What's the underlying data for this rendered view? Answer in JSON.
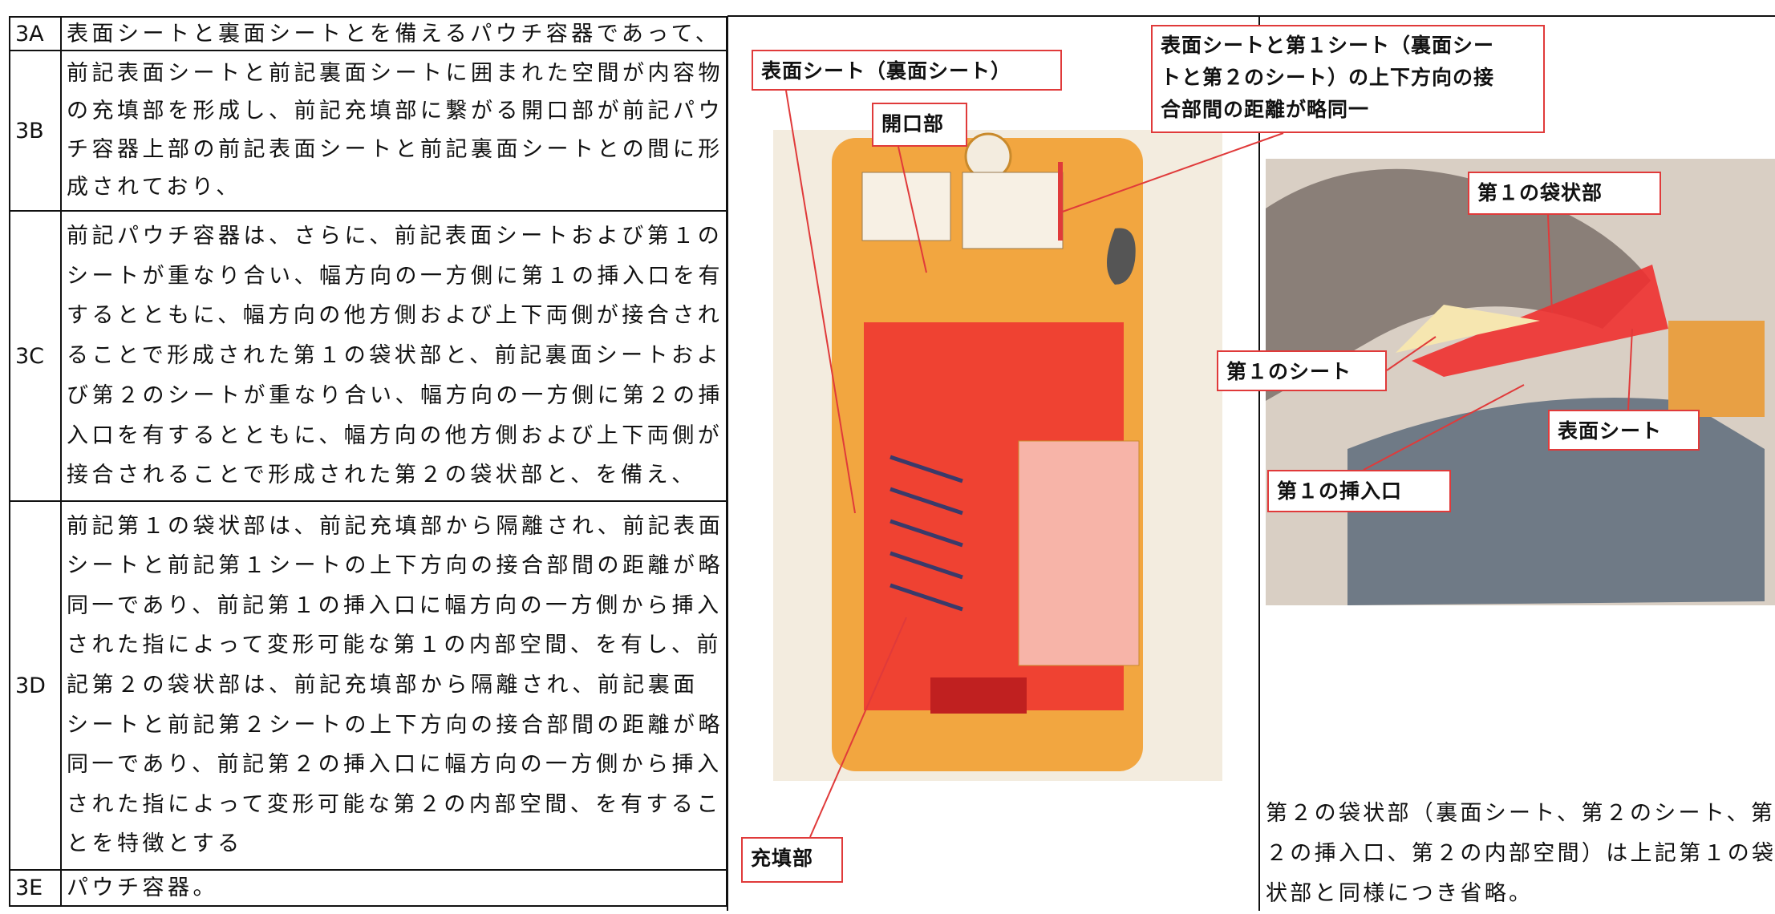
{
  "table": {
    "rows": [
      {
        "id": "3A",
        "lines": [
          "表面シートと裏面シートとを備えるパウチ容器であって、"
        ]
      },
      {
        "id": "3B",
        "lines": [
          "前記表面シートと前記裏面シートに囲まれた空間が内容物",
          "の充填部を形成し、前記充填部に繋がる開口部が前記パウ",
          "チ容器上部の前記表面シートと前記裏面シートとの間に形",
          "成されており、"
        ]
      },
      {
        "id": "3C",
        "lines": [
          "前記パウチ容器は、さらに、前記表面シートおよび第１の",
          "シートが重なり合い、幅方向の一方側に第１の挿入口を有",
          "するとともに、幅方向の他方側および上下両側が接合され",
          "ることで形成された第１の袋状部と、前記裏面シートおよ",
          "び第２のシートが重なり合い、幅方向の一方側に第２の挿",
          "入口を有するとともに、幅方向の他方側および上下両側が",
          "接合されることで形成された第２の袋状部と、を備え、"
        ]
      },
      {
        "id": "3D",
        "lines": [
          "前記第１の袋状部は、前記充填部から隔離され、前記表面",
          "シートと前記第１シートの上下方向の接合部間の距離が略",
          "同一であり、前記第１の挿入口に幅方向の一方側から挿入",
          "された指によって変形可能な第１の内部空間、を有し、前",
          "記第２の袋状部は、前記充填部から隔離され、前記裏面",
          "シートと前記第２シートの上下方向の接合部間の距離が略",
          "同一であり、前記第２の挿入口に幅方向の一方側から挿入",
          "された指によって変形可能な第２の内部空間、を有するこ",
          "とを特徴とする"
        ]
      },
      {
        "id": "3E",
        "lines": [
          "パウチ容器。"
        ]
      }
    ]
  },
  "figure_left": {
    "labels": [
      {
        "lines": [
          "表面シート（裏面シート）"
        ]
      },
      {
        "lines": [
          "開口部"
        ]
      },
      {
        "lines": [
          "充填部"
        ]
      },
      {
        "lines": [
          "表面シートと第１シート（裏面シー",
          "トと第２のシート）の上下方向の接",
          "合部間の距離が略同一"
        ]
      }
    ]
  },
  "figure_right": {
    "labels": [
      {
        "lines": [
          "第１の袋状部"
        ]
      },
      {
        "lines": [
          "第１のシート"
        ]
      },
      {
        "lines": [
          "表面シート"
        ]
      },
      {
        "lines": [
          "第１の挿入口"
        ]
      }
    ],
    "caption": [
      "第２の袋状部（裏面シート、第２のシート、第",
      "２の挿入口、第２の内部空間）は上記第１の袋",
      "状部と同様につき省略。"
    ]
  }
}
